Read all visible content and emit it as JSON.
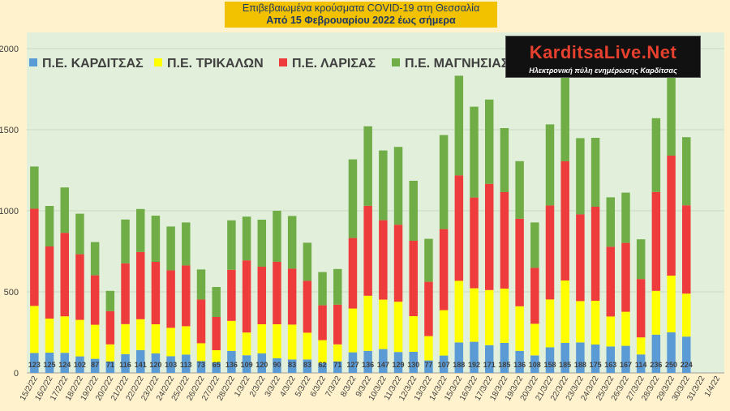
{
  "colors": {
    "background": "#FFF2CC",
    "plot_background": "#E2EFDA",
    "karditsa": "#5B9BD5",
    "trikala": "#FFFF00",
    "larisa": "#EE3B3B",
    "magnisia": "#70AD47",
    "title_box": "#F2C200"
  },
  "header": {
    "line1": "Επιβεβαιωμένα κρούσματα COVID-19 στη Θεσσαλία",
    "line2": "Από 15 Φεβρουαρίου 2022 έως σήμερα"
  },
  "logo": {
    "brand": "KarditsaLive.Net",
    "tagline": "Ηλεκτρονική πύλη ενημέρωσης Καρδίτσας"
  },
  "chart_data": {
    "type": "bar",
    "stacked": true,
    "ylim": [
      0,
      2100
    ],
    "yticks": [
      0,
      500,
      1000,
      1500,
      2000
    ],
    "grid": true,
    "legend_position": "top-left",
    "categories": [
      "15/2/22",
      "16/2/22",
      "17/2/22",
      "18/2/22",
      "19/2/22",
      "20/2/22",
      "21/2/22",
      "22/2/22",
      "23/2/22",
      "24/2/22",
      "25/2/22",
      "26/2/22",
      "27/2/22",
      "28/2/22",
      "1/3/22",
      "2/3/22",
      "3/3/22",
      "4/3/22",
      "5/3/22",
      "6/3/22",
      "7/3/22",
      "8/3/22",
      "9/3/22",
      "10/3/22",
      "11/3/22",
      "12/3/22",
      "13/3/22",
      "14/3/22",
      "15/3/22",
      "16/3/22",
      "17/3/22",
      "18/3/22",
      "19/3/22",
      "20/3/22",
      "21/3/22",
      "22/3/22",
      "23/3/22",
      "24/3/22",
      "25/3/22",
      "26/3/22",
      "27/3/22",
      "28/3/22",
      "29/3/22",
      "30/3/22",
      "31/3/22",
      "1/4/22"
    ],
    "series": [
      {
        "name": "Π.Ε. ΚΑΡΔΙΤΣΑΣ",
        "values": [
          123,
          125,
          124,
          102,
          87,
          71,
          116,
          141,
          120,
          103,
          113,
          73,
          65,
          136,
          109,
          120,
          90,
          83,
          83,
          62,
          71,
          127,
          136,
          147,
          129,
          130,
          77,
          107,
          188,
          192,
          171,
          185,
          136,
          108,
          158,
          185,
          188,
          175,
          163,
          167,
          114,
          236,
          250,
          224,
          null,
          null
        ]
      },
      {
        "name": "Π.Ε. ΤΡΙΚΑΛΩΝ",
        "values": [
          290,
          210,
          225,
          225,
          210,
          105,
          185,
          190,
          180,
          175,
          175,
          110,
          75,
          185,
          140,
          180,
          210,
          215,
          165,
          140,
          105,
          270,
          340,
          305,
          310,
          220,
          150,
          280,
          380,
          330,
          340,
          335,
          275,
          195,
          295,
          385,
          255,
          270,
          185,
          210,
          105,
          270,
          350,
          265,
          null,
          null
        ]
      },
      {
        "name": "Π.Ε. ΛΑΡΙΣΑΣ",
        "values": [
          600,
          445,
          515,
          405,
          305,
          205,
          375,
          415,
          385,
          355,
          375,
          270,
          205,
          315,
          445,
          355,
          385,
          345,
          320,
          215,
          245,
          435,
          555,
          490,
          475,
          465,
          335,
          500,
          650,
          560,
          655,
          595,
          540,
          345,
          580,
          735,
          535,
          580,
          430,
          425,
          360,
          610,
          740,
          545,
          null,
          null
        ]
      },
      {
        "name": "Π.Ε. ΜΑΓΝΗΣΙΑΣ",
        "values": [
          260,
          250,
          280,
          250,
          205,
          125,
          270,
          265,
          285,
          270,
          265,
          185,
          185,
          305,
          270,
          290,
          315,
          325,
          235,
          205,
          220,
          485,
          490,
          430,
          480,
          370,
          265,
          580,
          615,
          560,
          520,
          395,
          355,
          280,
          500,
          530,
          470,
          425,
          305,
          310,
          245,
          455,
          540,
          420,
          null,
          null
        ]
      }
    ],
    "data_labels_series": "Π.Ε. ΚΑΡΔΙΤΣΑΣ"
  }
}
